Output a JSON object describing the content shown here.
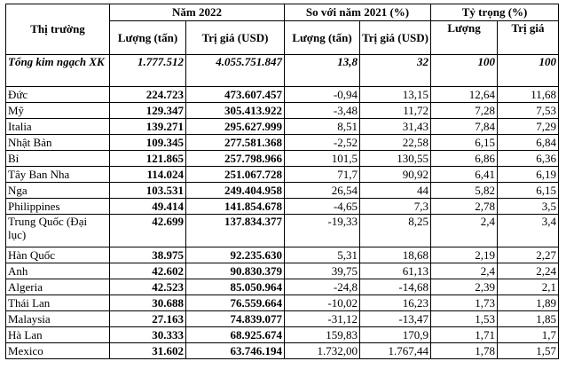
{
  "header": {
    "market": "Thị trường",
    "year_2022": "Năm 2022",
    "vs_2021": "So với năm 2021 (%)",
    "share": "Tỷ trọng (%)",
    "volume_tons": "Lượng (tấn)",
    "value_usd": "Trị giá (USD)",
    "volume": "Lượng",
    "value": "Trị giá"
  },
  "total": {
    "market": "Tổng kim ngạch XK",
    "volume": "1.777.512",
    "value": "4.055.751.847",
    "vol_change": "13,8",
    "val_change": "32",
    "vol_share": "100",
    "val_share": "100"
  },
  "rows": [
    {
      "market": "Đức",
      "volume": "224.723",
      "value": "473.607.457",
      "vol_change": "-0,94",
      "val_change": "13,15",
      "vol_share": "12,64",
      "val_share": "11,68"
    },
    {
      "market": "Mỹ",
      "volume": "129.347",
      "value": "305.413.922",
      "vol_change": "-3,48",
      "val_change": "11,72",
      "vol_share": "7,28",
      "val_share": "7,53"
    },
    {
      "market": "Italia",
      "volume": "139.271",
      "value": "295.627.999",
      "vol_change": "8,51",
      "val_change": "31,43",
      "vol_share": "7,84",
      "val_share": "7,29"
    },
    {
      "market": "Nhật Bản",
      "volume": "109.345",
      "value": "277.581.368",
      "vol_change": "-2,52",
      "val_change": "22,58",
      "vol_share": "6,15",
      "val_share": "6,84"
    },
    {
      "market": "Bỉ",
      "volume": "121.865",
      "value": "257.798.966",
      "vol_change": "101,5",
      "val_change": "130,55",
      "vol_share": "6,86",
      "val_share": "6,36"
    },
    {
      "market": "Tây Ban Nha",
      "volume": "114.024",
      "value": "251.067.728",
      "vol_change": "71,7",
      "val_change": "90,92",
      "vol_share": "6,41",
      "val_share": "6,19"
    },
    {
      "market": "Nga",
      "volume": "103.531",
      "value": "249.404.958",
      "vol_change": "26,54",
      "val_change": "44",
      "vol_share": "5,82",
      "val_share": "6,15"
    },
    {
      "market": "Philippines",
      "volume": "49.414",
      "value": "141.854.678",
      "vol_change": "-4,65",
      "val_change": "7,3",
      "vol_share": "2,78",
      "val_share": "3,5"
    },
    {
      "market": "Trung Quốc (Đại lục)",
      "volume": "42.699",
      "value": "137.834.377",
      "vol_change": "-19,33",
      "val_change": "8,25",
      "vol_share": "2,4",
      "val_share": "3,4"
    },
    {
      "market": "Hàn Quốc",
      "volume": "38.975",
      "value": "92.235.630",
      "vol_change": "5,31",
      "val_change": "18,68",
      "vol_share": "2,19",
      "val_share": "2,27"
    },
    {
      "market": "Anh",
      "volume": "42.602",
      "value": "90.830.379",
      "vol_change": "39,75",
      "val_change": "61,13",
      "vol_share": "2,4",
      "val_share": "2,24"
    },
    {
      "market": "Algeria",
      "volume": "42.523",
      "value": "85.050.964",
      "vol_change": "-24,8",
      "val_change": "-14,68",
      "vol_share": "2,39",
      "val_share": "2,1"
    },
    {
      "market": "Thái Lan",
      "volume": "30.688",
      "value": "76.559.664",
      "vol_change": "-10,02",
      "val_change": "16,23",
      "vol_share": "1,73",
      "val_share": "1,89"
    },
    {
      "market": "Malaysia",
      "volume": "27.163",
      "value": "74.839.077",
      "vol_change": "-31,12",
      "val_change": "-13,47",
      "vol_share": "1,53",
      "val_share": "1,85"
    },
    {
      "market": "Hà Lan",
      "volume": "30.333",
      "value": "68.925.674",
      "vol_change": "159,83",
      "val_change": "170,9",
      "vol_share": "1,71",
      "val_share": "1,7"
    },
    {
      "market": "Mexico",
      "volume": "31.602",
      "value": "63.746.194",
      "vol_change": "1.732,00",
      "val_change": "1.767,44",
      "vol_share": "1,78",
      "val_share": "1,57"
    }
  ]
}
